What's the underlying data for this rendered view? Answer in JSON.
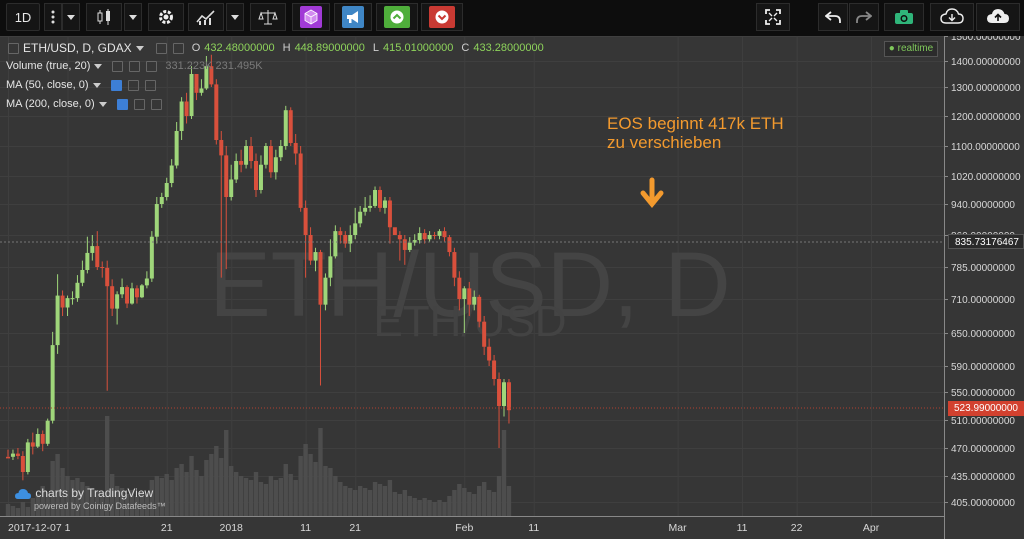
{
  "toolbar": {
    "interval_label": "1D",
    "purple_color": "#a13ad6",
    "blue_color": "#3f86c5",
    "green_color": "#4fae3b",
    "red_color": "#c93a33"
  },
  "legend": {
    "symbol": "ETH/USD, D, GDAX",
    "o_label": "O",
    "o_value": "432.48000000",
    "h_label": "H",
    "h_value": "448.89000000",
    "l_label": "L",
    "l_value": "415.01000000",
    "c_label": "C",
    "c_value": "433.28000000",
    "volume": "Volume (true, 20)",
    "volume_values": "331.223K 231.495K",
    "ma50": "MA (50, close, 0)",
    "ma200": "MA (200, close, 0)",
    "realtime": "realtime"
  },
  "watermark": {
    "big": "ETH/USD, D",
    "small": "ETH/USD"
  },
  "annotation": {
    "line1": "EOS beginnt 417k ETH",
    "line2": "zu verschieben",
    "color": "#f39a2e"
  },
  "branding": {
    "main": "charts by TradingView",
    "sub": "powered by Coinigy Datafeeds™"
  },
  "chart_data": {
    "type": "candlestick",
    "title": "ETH/USD, D, GDAX",
    "price_axis_ticks": [
      "1500.00000000",
      "1400.00000000",
      "1300.00000000",
      "1200.00000000",
      "1100.00000000",
      "1020.00000000",
      "940.00000000",
      "860.00000000",
      "785.00000000",
      "710.00000000",
      "650.00000000",
      "590.00000000",
      "550.00000000",
      "510.00000000",
      "470.00000000",
      "435.00000000",
      "405.00000000"
    ],
    "price_axis_values": [
      1500,
      1400,
      1300,
      1200,
      1100,
      1020,
      940,
      860,
      785,
      710,
      650,
      590,
      550,
      510,
      470,
      435,
      405
    ],
    "crosshair_price": "835.73176467",
    "last_price": "523.99000000",
    "time_axis_labels": [
      "2017-12-07",
      "1",
      "21",
      "2018",
      "11",
      "21",
      "Feb",
      "11",
      "Mar",
      "11",
      "22",
      "Apr"
    ],
    "time_axis_index": [
      0,
      12,
      32,
      45,
      60,
      70,
      92,
      106,
      135,
      148,
      159,
      174
    ],
    "up_color": "#9fd67a",
    "down_color": "#d9503c",
    "candles": [
      [
        459,
        457,
        468,
        459
      ],
      [
        459,
        463,
        468,
        455
      ],
      [
        463,
        460,
        470,
        456
      ],
      [
        460,
        440,
        466,
        430
      ],
      [
        440,
        478,
        483,
        437
      ],
      [
        478,
        472,
        492,
        462
      ],
      [
        472,
        490,
        498,
        470
      ],
      [
        490,
        476,
        495,
        466
      ],
      [
        476,
        509,
        512,
        473
      ],
      [
        509,
        628,
        652,
        505
      ],
      [
        628,
        718,
        768,
        612
      ],
      [
        718,
        695,
        730,
        680
      ],
      [
        695,
        712,
        718,
        680
      ],
      [
        712,
        712,
        728,
        700
      ],
      [
        712,
        748,
        766,
        705
      ],
      [
        748,
        778,
        800,
        740
      ],
      [
        778,
        818,
        856,
        770
      ],
      [
        818,
        834,
        860,
        800
      ],
      [
        834,
        785,
        870,
        778
      ],
      [
        785,
        783,
        798,
        760
      ],
      [
        783,
        740,
        800,
        552
      ],
      [
        740,
        693,
        756,
        680
      ],
      [
        693,
        721,
        728,
        665
      ],
      [
        721,
        738,
        758,
        712
      ],
      [
        738,
        702,
        742,
        694
      ],
      [
        702,
        735,
        748,
        700
      ],
      [
        735,
        714,
        742,
        702
      ],
      [
        714,
        742,
        745,
        712
      ],
      [
        742,
        758,
        775,
        735
      ],
      [
        758,
        856,
        870,
        750
      ],
      [
        856,
        940,
        960,
        840
      ],
      [
        940,
        960,
        972,
        930
      ],
      [
        960,
        1000,
        1015,
        950
      ],
      [
        1000,
        1048,
        1065,
        988
      ],
      [
        1048,
        1150,
        1180,
        1040
      ],
      [
        1150,
        1250,
        1265,
        1120
      ],
      [
        1250,
        1200,
        1280,
        1175
      ],
      [
        1200,
        1350,
        1380,
        1190
      ],
      [
        1350,
        1280,
        1320,
        1255
      ],
      [
        1280,
        1295,
        1330,
        1270
      ],
      [
        1295,
        1380,
        1420,
        1290
      ],
      [
        1380,
        1310,
        1425,
        1300
      ],
      [
        1310,
        1120,
        1330,
        1105
      ],
      [
        1120,
        1075,
        1150,
        760
      ],
      [
        1075,
        960,
        1100,
        780
      ],
      [
        960,
        1010,
        1050,
        950
      ],
      [
        1010,
        1060,
        1080,
        1000
      ],
      [
        1060,
        1050,
        1090,
        1030
      ],
      [
        1050,
        1100,
        1120,
        1040
      ],
      [
        1100,
        1060,
        1130,
        1040
      ],
      [
        1060,
        980,
        1080,
        960
      ],
      [
        980,
        1050,
        1075,
        970
      ],
      [
        1050,
        1100,
        1110,
        1040
      ],
      [
        1100,
        1030,
        1120,
        1015
      ],
      [
        1030,
        1070,
        1090,
        1010
      ],
      [
        1070,
        1100,
        1120,
        1060
      ],
      [
        1100,
        1220,
        1235,
        1090
      ],
      [
        1220,
        1110,
        1230,
        1100
      ],
      [
        1110,
        1080,
        1140,
        1050
      ],
      [
        1080,
        930,
        1100,
        920
      ],
      [
        930,
        860,
        950,
        760
      ],
      [
        860,
        800,
        880,
        790
      ],
      [
        800,
        820,
        830,
        775
      ],
      [
        820,
        700,
        825,
        560
      ],
      [
        700,
        760,
        770,
        690
      ],
      [
        760,
        810,
        850,
        740
      ],
      [
        810,
        870,
        885,
        805
      ],
      [
        870,
        860,
        880,
        840
      ],
      [
        860,
        840,
        870,
        830
      ],
      [
        840,
        860,
        885,
        820
      ],
      [
        860,
        890,
        930,
        850
      ],
      [
        890,
        920,
        935,
        880
      ],
      [
        920,
        930,
        960,
        910
      ],
      [
        930,
        935,
        965,
        920
      ],
      [
        935,
        980,
        990,
        930
      ],
      [
        980,
        930,
        990,
        920
      ],
      [
        930,
        950,
        960,
        915
      ],
      [
        950,
        880,
        960,
        840
      ],
      [
        880,
        860,
        870,
        860
      ],
      [
        860,
        850,
        870,
        800
      ],
      [
        850,
        825,
        860,
        790
      ],
      [
        825,
        842,
        855,
        820
      ],
      [
        842,
        848,
        862,
        835
      ],
      [
        848,
        865,
        880,
        840
      ],
      [
        865,
        850,
        875,
        840
      ],
      [
        850,
        860,
        870,
        845
      ],
      [
        860,
        858,
        868,
        850
      ],
      [
        858,
        870,
        875,
        850
      ],
      [
        870,
        855,
        880,
        845
      ],
      [
        855,
        820,
        860,
        810
      ],
      [
        820,
        760,
        830,
        740
      ],
      [
        760,
        710,
        775,
        690
      ],
      [
        710,
        735,
        740,
        650
      ],
      [
        735,
        700,
        750,
        680
      ],
      [
        700,
        715,
        730,
        690
      ],
      [
        715,
        670,
        720,
        660
      ],
      [
        670,
        625,
        680,
        610
      ],
      [
        625,
        600,
        640,
        590
      ],
      [
        600,
        570,
        610,
        560
      ],
      [
        570,
        530,
        580,
        470
      ],
      [
        530,
        565,
        570,
        515
      ],
      [
        565,
        524,
        570,
        505
      ]
    ],
    "volume_axis_note": "volume histogram at bottom"
  }
}
